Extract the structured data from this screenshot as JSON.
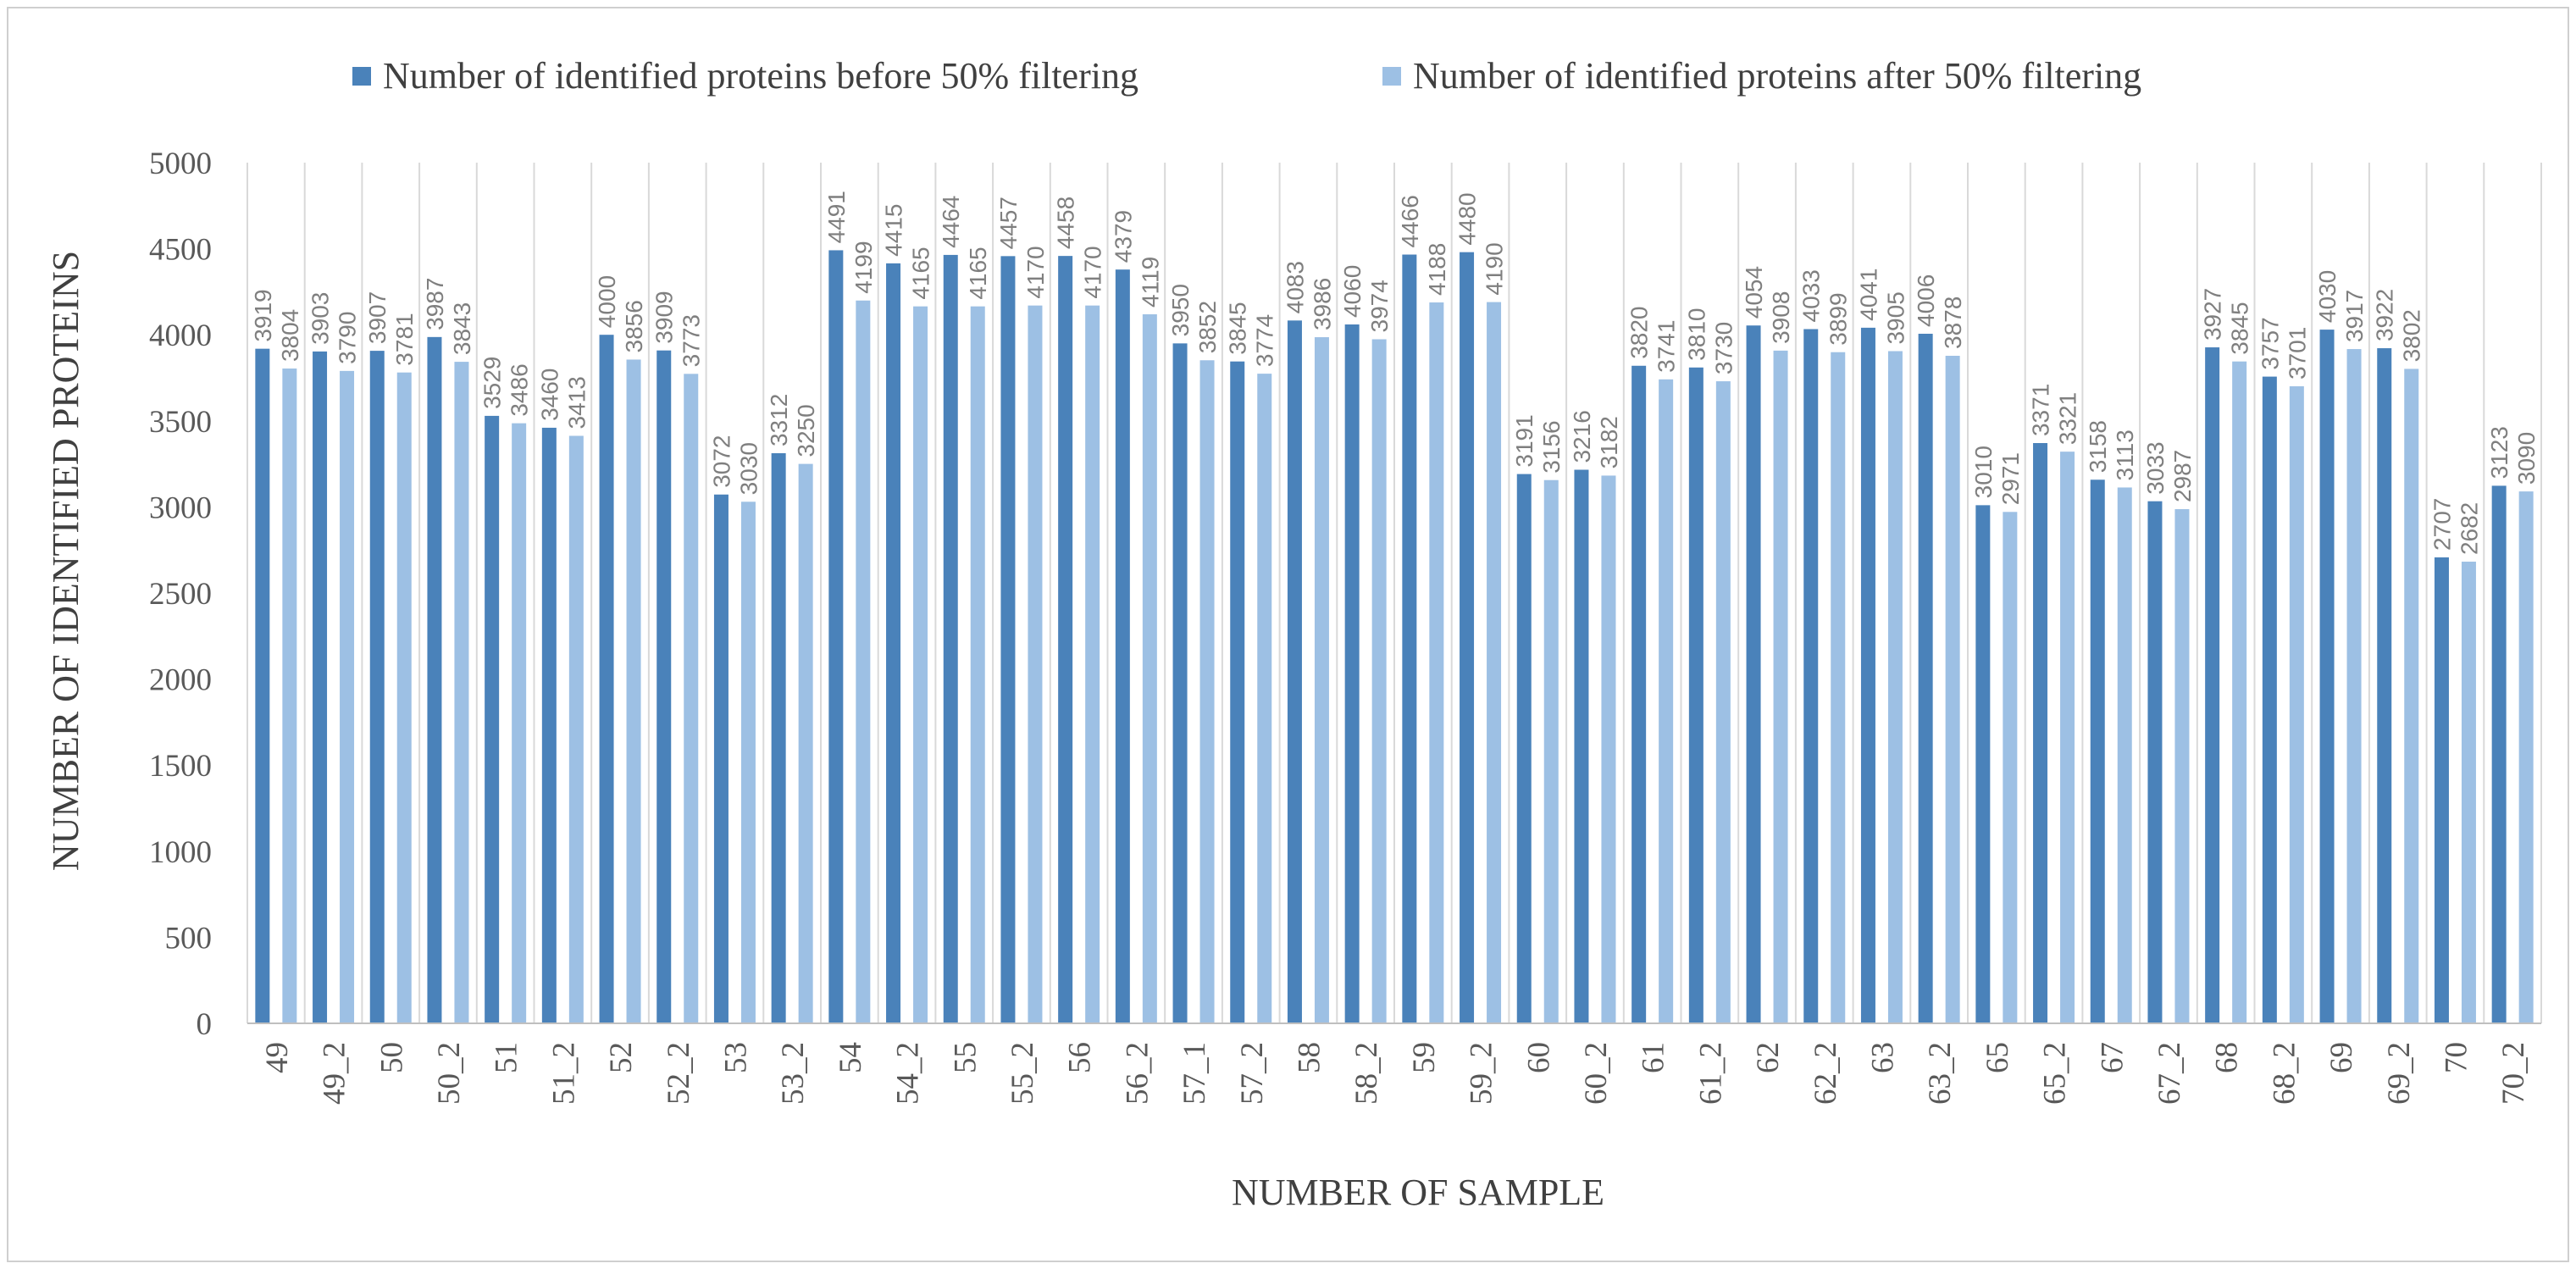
{
  "chart_data": {
    "type": "bar",
    "title": "",
    "xlabel": "NUMBER OF SAMPLE",
    "ylabel": "NUMBER OF IDENTIFIED PROTEINS",
    "ylim": [
      0,
      5000
    ],
    "yticks": [
      0,
      500,
      1000,
      1500,
      2000,
      2500,
      3000,
      3500,
      4000,
      4500,
      5000
    ],
    "grid": "vertical-separators",
    "legend_position": "top",
    "categories": [
      "49",
      "49_2",
      "50",
      "50_2",
      "51",
      "51_2",
      "52",
      "52_2",
      "53",
      "53_2",
      "54",
      "54_2",
      "55",
      "55_2",
      "56",
      "56_2",
      "57_1",
      "57_2",
      "58",
      "58_2",
      "59",
      "59_2",
      "60",
      "60_2",
      "61",
      "61_2",
      "62",
      "62_2",
      "63",
      "63_2",
      "65",
      "65_2",
      "67",
      "67_2",
      "68",
      "68_2",
      "69",
      "69_2",
      "70",
      "70_2"
    ],
    "series": [
      {
        "name": "Number of identified proteins before 50% filtering",
        "color": "#4a82ba",
        "values": [
          3919,
          3903,
          3907,
          3987,
          3529,
          3460,
          4000,
          3909,
          3072,
          3312,
          4491,
          4415,
          4464,
          4457,
          4458,
          4379,
          3950,
          3845,
          4083,
          4060,
          4466,
          4480,
          3191,
          3216,
          3820,
          3810,
          4054,
          4033,
          4041,
          4006,
          3010,
          3371,
          3158,
          3033,
          3927,
          3757,
          4030,
          3922,
          2707,
          3123
        ]
      },
      {
        "name": "Number of identified proteins after 50% filtering",
        "color": "#9dc0e4",
        "values": [
          3804,
          3790,
          3781,
          3843,
          3486,
          3413,
          3856,
          3773,
          3030,
          3250,
          4199,
          4165,
          4165,
          4170,
          4170,
          4119,
          3852,
          3774,
          3986,
          3974,
          4188,
          4190,
          3156,
          3182,
          3741,
          3730,
          3908,
          3899,
          3905,
          3878,
          2971,
          3321,
          3113,
          2987,
          3845,
          3701,
          3917,
          3802,
          2682,
          3090
        ]
      }
    ]
  }
}
